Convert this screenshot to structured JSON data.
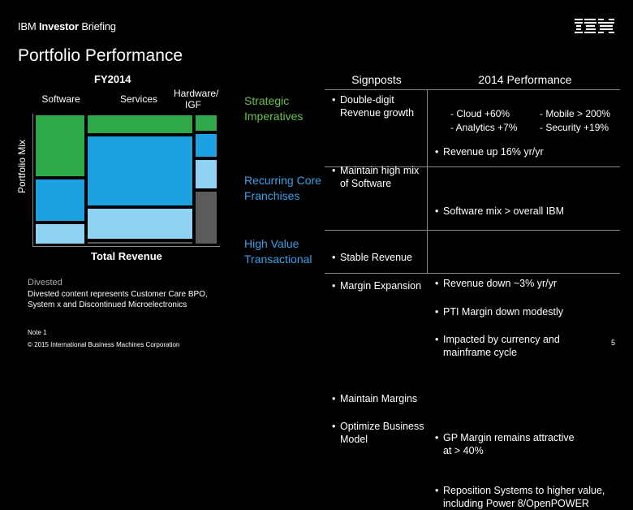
{
  "header": {
    "brand_light": "IBM ",
    "brand_bold": "Investor",
    "brand_rest": " Briefing"
  },
  "title": "Portfolio Performance",
  "chart": {
    "period": "FY2014",
    "columns": [
      "Software",
      "Services",
      "Hardware/ IGF"
    ],
    "y_label": "Portfolio Mix",
    "x_label": "Total Revenue",
    "colors": {
      "strategic": "#2fa84a",
      "recurring": "#1da1e2",
      "transactional": "#8fd3f4",
      "other": "#5b5b5b"
    }
  },
  "chart_data": {
    "type": "mekko",
    "categories": [
      "Software",
      "Services",
      "Hardware/ IGF"
    ],
    "widths": [
      0.28,
      0.59,
      0.13
    ],
    "series": [
      {
        "values": [
          0.49,
          0.16,
          0.14
        ]
      },
      {
        "values": [
          0.34,
          0.55,
          0.2
        ]
      },
      {
        "values": [
          0.17,
          0.25,
          0.24
        ]
      },
      {
        "values": [
          0.0,
          0.04,
          0.42
        ]
      }
    ]
  },
  "divested": {
    "label": "Divested",
    "text": "Divested content represents Customer Care BPO, System x and Discontinued Microelectronics"
  },
  "footer": {
    "note": "Note 1",
    "copyright": "© 2015 International Business Machines Corporation",
    "page": "5"
  },
  "table": {
    "headers": [
      "Signposts",
      "2014 Performance"
    ],
    "rows": [
      {
        "category": "Strategic Imperatives",
        "signposts": [
          "Double-digit Revenue growth",
          "Maintain high mix of Software"
        ],
        "performance": [
          "Revenue up 16% yr/yr",
          "Software mix > overall IBM"
        ],
        "subs": [
          "Cloud +60%",
          "Mobile > 200%",
          "Analytics +7%",
          "Security +19%"
        ]
      },
      {
        "category": "Recurring Core Franchises",
        "signposts": [
          "Stable Revenue",
          "Margin Expansion"
        ],
        "performance": [
          "Revenue down ~3% yr/yr",
          "PTI Margin down modestly",
          "Impacted by currency and mainframe cycle"
        ]
      },
      {
        "category": "High Value Transactional",
        "signposts": [
          "Maintain Margins",
          "Optimize Business Model"
        ],
        "performance": [
          "GP Margin remains attractive at > 40%",
          "Reposition Systems to higher value, including Power 8/OpenPOWER"
        ]
      }
    ]
  }
}
